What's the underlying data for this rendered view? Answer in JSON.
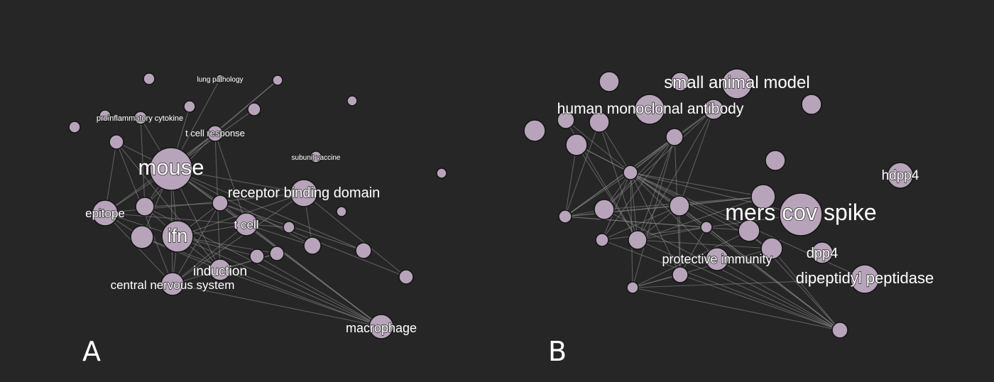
{
  "panels": [
    {
      "letter": "A",
      "labels": {
        "lung_pathology": "lung pathology",
        "proinflammatory_cytokine": "proinflammatory cytokine",
        "t_cell_response": "t cell response",
        "subunit_vaccine": "subunit vaccine",
        "mouse": "mouse",
        "receptor_binding_domain": "receptor binding domain",
        "epitope": "epitope",
        "t_cell": "t cell",
        "ifn": "ifn",
        "induction": "induction",
        "central_nervous_system": "central nervous system",
        "macrophage": "macrophage"
      }
    },
    {
      "letter": "B",
      "labels": {
        "small_animal_model": "small animal model",
        "human_monoclonal_antibody": "human monoclonal antibody",
        "hdpp4": "hdpp4",
        "mers_cov_spike": "mers cov spike",
        "protective_immunity": "protective immunity",
        "dpp4": "dpp4",
        "dipeptidyl_peptidase": "dipeptidyl peptidase"
      }
    }
  ],
  "colors": {
    "background": "#262626",
    "node_fill": "#b7a3ba",
    "edge": "#8c8c8c",
    "text": "#ffffff"
  }
}
